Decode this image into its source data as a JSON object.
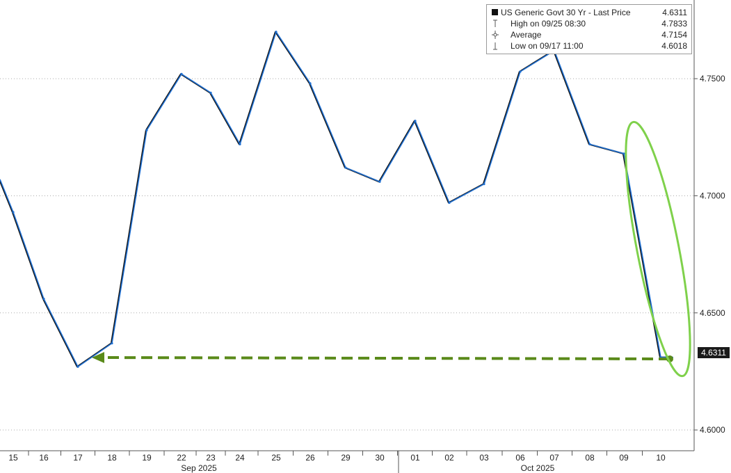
{
  "legend": {
    "series": {
      "label": "US Generic Govt 30 Yr - Last Price",
      "value": "4.6311"
    },
    "high": {
      "label": "High on 09/25 08:30",
      "value": "4.7833"
    },
    "average": {
      "label": "Average",
      "value": "4.7154"
    },
    "low": {
      "label": "Low on 09/17 11:00",
      "value": "4.6018"
    }
  },
  "last_price_tag": "4.6311",
  "colors": {
    "line": "#1f6fd1",
    "shadow": "#111111",
    "annotation_green": "#7fd14b",
    "arrow_green": "#5a8a1a"
  },
  "chart_data": {
    "type": "line",
    "series": [
      {
        "name": "US Generic Govt 30 Yr - Last Price",
        "x": [
          "2025-09-15",
          "2025-09-16",
          "2025-09-17",
          "2025-09-18",
          "2025-09-19",
          "2025-09-22",
          "2025-09-23",
          "2025-09-24",
          "2025-09-25",
          "2025-09-26",
          "2025-09-29",
          "2025-09-30",
          "2025-10-01",
          "2025-10-02",
          "2025-10-03",
          "2025-10-06",
          "2025-10-07",
          "2025-10-08",
          "2025-10-09",
          "2025-10-10"
        ],
        "values": [
          4.693,
          4.656,
          4.627,
          4.637,
          4.728,
          4.752,
          4.744,
          4.722,
          4.77,
          4.748,
          4.712,
          4.706,
          4.732,
          4.697,
          4.705,
          4.753,
          4.762,
          4.722,
          4.718,
          4.631
        ]
      }
    ],
    "x_tick_labels": [
      "15",
      "16",
      "17",
      "18",
      "19",
      "22",
      "23",
      "24",
      "25",
      "26",
      "29",
      "30",
      "01",
      "02",
      "03",
      "06",
      "07",
      "08",
      "09",
      "10"
    ],
    "month_labels": [
      "Sep 2025",
      "Oct 2025"
    ],
    "y_ticks": [
      4.6,
      4.65,
      4.7,
      4.75
    ],
    "y_tick_labels": [
      "4.6000",
      "4.6500",
      "4.7000",
      "4.7500"
    ],
    "ylim": [
      4.5935,
      4.7833
    ],
    "grid": "horizontal-dotted",
    "legend_position": "top-right",
    "annotations": [
      "ellipse around the final decline",
      "dashed arrow from the last price back to the 09/17 low level"
    ]
  }
}
